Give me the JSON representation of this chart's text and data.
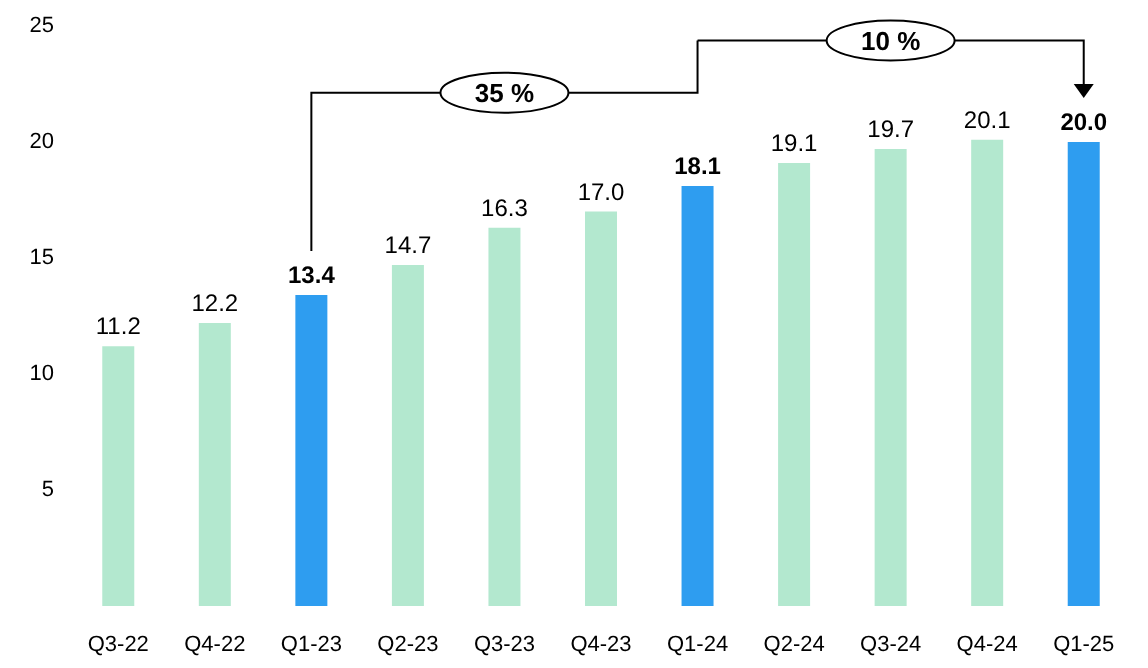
{
  "chart_data": {
    "type": "bar",
    "categories": [
      "Q3-22",
      "Q4-22",
      "Q1-23",
      "Q2-23",
      "Q3-23",
      "Q4-23",
      "Q1-24",
      "Q2-24",
      "Q3-24",
      "Q4-24",
      "Q1-25"
    ],
    "values": [
      11.2,
      12.2,
      13.4,
      14.7,
      16.3,
      17.0,
      18.1,
      19.1,
      19.7,
      20.1,
      20.0
    ],
    "colors": [
      "#b3e8cf",
      "#b3e8cf",
      "#2e9df0",
      "#b3e8cf",
      "#b3e8cf",
      "#b3e8cf",
      "#2e9df0",
      "#b3e8cf",
      "#b3e8cf",
      "#b3e8cf",
      "#2e9df0"
    ],
    "value_labels": [
      "11.2",
      "12.2",
      "13.4",
      "14.7",
      "16.3",
      "17.0",
      "18.1",
      "19.1",
      "19.7",
      "20.1",
      "20.0"
    ],
    "ylim": [
      0,
      25
    ],
    "yticks": [
      5,
      10,
      15,
      20,
      25
    ],
    "grid": false,
    "annotations": [
      "35 %",
      "10 %"
    ]
  }
}
